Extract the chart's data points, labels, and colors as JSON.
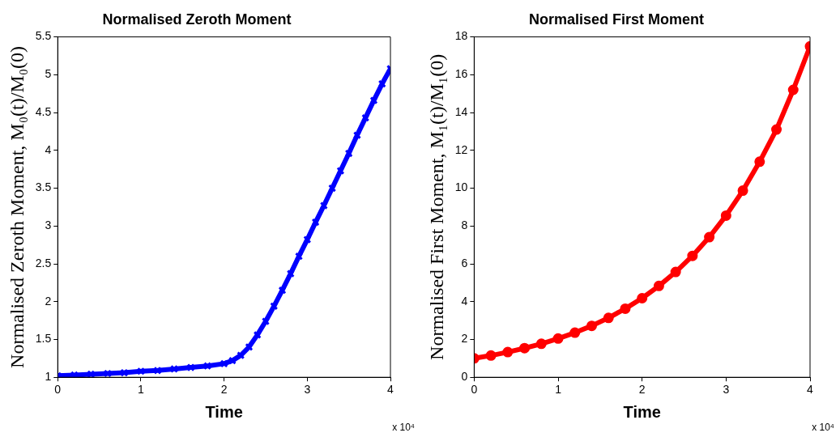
{
  "chart_data": [
    {
      "type": "line",
      "title": "Normalised Zeroth Moment",
      "xlabel": "Time",
      "ylabel": "Normalised Zeroth Moment, M₀(t)/M₀(0)",
      "annotations": [
        "x 10⁴"
      ],
      "x": [
        0,
        0.2,
        0.4,
        0.6,
        0.8,
        1,
        1.2,
        1.4,
        1.6,
        1.8,
        2,
        2.1,
        2.2,
        2.3,
        2.4,
        2.5,
        2.6,
        2.7,
        2.8,
        2.9,
        3,
        3.1,
        3.2,
        3.3,
        3.4,
        3.5,
        3.6,
        3.7,
        3.8,
        3.9,
        4
      ],
      "series": [
        {
          "color": "#0000ff",
          "values": [
            1.02,
            1.03,
            1.04,
            1.05,
            1.06,
            1.08,
            1.09,
            1.11,
            1.13,
            1.15,
            1.18,
            1.22,
            1.29,
            1.4,
            1.56,
            1.74,
            1.94,
            2.15,
            2.37,
            2.6,
            2.82,
            3.05,
            3.27,
            3.5,
            3.73,
            3.96,
            4.2,
            4.43,
            4.66,
            4.88,
            5.08
          ]
        }
      ],
      "xlim": [
        0,
        4
      ],
      "xticks": [
        0,
        1,
        2,
        3,
        4
      ],
      "ylim": [
        1,
        5.5
      ],
      "yticks": [
        1,
        1.5,
        2,
        2.5,
        3,
        3.5,
        4,
        4.5,
        5,
        5.5
      ],
      "grid": false,
      "legend": false,
      "marker": "cross",
      "line_style": "solid"
    },
    {
      "type": "line",
      "title": "Normalised First Moment",
      "xlabel": "Time",
      "ylabel": "Normalised First Moment, M₁(t)/M₁(0)",
      "annotations": [
        "x 10⁴"
      ],
      "x": [
        0,
        0.2,
        0.4,
        0.6,
        0.8,
        1,
        1.2,
        1.4,
        1.6,
        1.8,
        2,
        2.2,
        2.4,
        2.6,
        2.8,
        3,
        3.2,
        3.4,
        3.6,
        3.8,
        4
      ],
      "series": [
        {
          "color": "#ff0000",
          "values": [
            1.0,
            1.15,
            1.33,
            1.54,
            1.77,
            2.05,
            2.36,
            2.72,
            3.14,
            3.63,
            4.18,
            4.83,
            5.57,
            6.42,
            7.41,
            8.55,
            9.87,
            11.4,
            13.1,
            15.2,
            17.5
          ]
        }
      ],
      "xlim": [
        0,
        4
      ],
      "xticks": [
        0,
        1,
        2,
        3,
        4
      ],
      "ylim": [
        0,
        18
      ],
      "yticks": [
        0,
        2,
        4,
        6,
        8,
        10,
        12,
        14,
        16,
        18
      ],
      "grid": false,
      "legend": false,
      "marker": "circle",
      "line_style": "solid"
    }
  ]
}
